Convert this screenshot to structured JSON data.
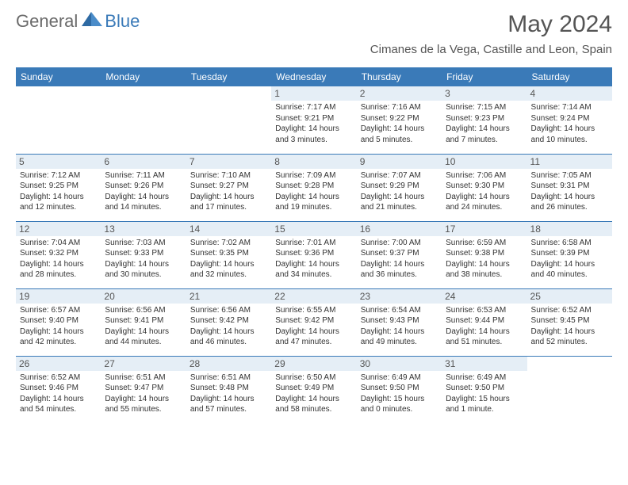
{
  "brand": {
    "part1": "General",
    "part2": "Blue"
  },
  "title": "May 2024",
  "location": "Cimanes de la Vega, Castille and Leon, Spain",
  "colors": {
    "header_bg": "#3a7ab8",
    "header_text": "#ffffff",
    "daynum_bg": "#e5eef6",
    "border": "#3a7ab8",
    "title_color": "#555555",
    "body_text": "#333333"
  },
  "headers": [
    "Sunday",
    "Monday",
    "Tuesday",
    "Wednesday",
    "Thursday",
    "Friday",
    "Saturday"
  ],
  "weeks": [
    [
      null,
      null,
      null,
      {
        "n": "1",
        "sr": "7:17 AM",
        "ss": "9:21 PM",
        "dl": "14 hours and 3 minutes."
      },
      {
        "n": "2",
        "sr": "7:16 AM",
        "ss": "9:22 PM",
        "dl": "14 hours and 5 minutes."
      },
      {
        "n": "3",
        "sr": "7:15 AM",
        "ss": "9:23 PM",
        "dl": "14 hours and 7 minutes."
      },
      {
        "n": "4",
        "sr": "7:14 AM",
        "ss": "9:24 PM",
        "dl": "14 hours and 10 minutes."
      }
    ],
    [
      {
        "n": "5",
        "sr": "7:12 AM",
        "ss": "9:25 PM",
        "dl": "14 hours and 12 minutes."
      },
      {
        "n": "6",
        "sr": "7:11 AM",
        "ss": "9:26 PM",
        "dl": "14 hours and 14 minutes."
      },
      {
        "n": "7",
        "sr": "7:10 AM",
        "ss": "9:27 PM",
        "dl": "14 hours and 17 minutes."
      },
      {
        "n": "8",
        "sr": "7:09 AM",
        "ss": "9:28 PM",
        "dl": "14 hours and 19 minutes."
      },
      {
        "n": "9",
        "sr": "7:07 AM",
        "ss": "9:29 PM",
        "dl": "14 hours and 21 minutes."
      },
      {
        "n": "10",
        "sr": "7:06 AM",
        "ss": "9:30 PM",
        "dl": "14 hours and 24 minutes."
      },
      {
        "n": "11",
        "sr": "7:05 AM",
        "ss": "9:31 PM",
        "dl": "14 hours and 26 minutes."
      }
    ],
    [
      {
        "n": "12",
        "sr": "7:04 AM",
        "ss": "9:32 PM",
        "dl": "14 hours and 28 minutes."
      },
      {
        "n": "13",
        "sr": "7:03 AM",
        "ss": "9:33 PM",
        "dl": "14 hours and 30 minutes."
      },
      {
        "n": "14",
        "sr": "7:02 AM",
        "ss": "9:35 PM",
        "dl": "14 hours and 32 minutes."
      },
      {
        "n": "15",
        "sr": "7:01 AM",
        "ss": "9:36 PM",
        "dl": "14 hours and 34 minutes."
      },
      {
        "n": "16",
        "sr": "7:00 AM",
        "ss": "9:37 PM",
        "dl": "14 hours and 36 minutes."
      },
      {
        "n": "17",
        "sr": "6:59 AM",
        "ss": "9:38 PM",
        "dl": "14 hours and 38 minutes."
      },
      {
        "n": "18",
        "sr": "6:58 AM",
        "ss": "9:39 PM",
        "dl": "14 hours and 40 minutes."
      }
    ],
    [
      {
        "n": "19",
        "sr": "6:57 AM",
        "ss": "9:40 PM",
        "dl": "14 hours and 42 minutes."
      },
      {
        "n": "20",
        "sr": "6:56 AM",
        "ss": "9:41 PM",
        "dl": "14 hours and 44 minutes."
      },
      {
        "n": "21",
        "sr": "6:56 AM",
        "ss": "9:42 PM",
        "dl": "14 hours and 46 minutes."
      },
      {
        "n": "22",
        "sr": "6:55 AM",
        "ss": "9:42 PM",
        "dl": "14 hours and 47 minutes."
      },
      {
        "n": "23",
        "sr": "6:54 AM",
        "ss": "9:43 PM",
        "dl": "14 hours and 49 minutes."
      },
      {
        "n": "24",
        "sr": "6:53 AM",
        "ss": "9:44 PM",
        "dl": "14 hours and 51 minutes."
      },
      {
        "n": "25",
        "sr": "6:52 AM",
        "ss": "9:45 PM",
        "dl": "14 hours and 52 minutes."
      }
    ],
    [
      {
        "n": "26",
        "sr": "6:52 AM",
        "ss": "9:46 PM",
        "dl": "14 hours and 54 minutes."
      },
      {
        "n": "27",
        "sr": "6:51 AM",
        "ss": "9:47 PM",
        "dl": "14 hours and 55 minutes."
      },
      {
        "n": "28",
        "sr": "6:51 AM",
        "ss": "9:48 PM",
        "dl": "14 hours and 57 minutes."
      },
      {
        "n": "29",
        "sr": "6:50 AM",
        "ss": "9:49 PM",
        "dl": "14 hours and 58 minutes."
      },
      {
        "n": "30",
        "sr": "6:49 AM",
        "ss": "9:50 PM",
        "dl": "15 hours and 0 minutes."
      },
      {
        "n": "31",
        "sr": "6:49 AM",
        "ss": "9:50 PM",
        "dl": "15 hours and 1 minute."
      },
      null
    ]
  ],
  "labels": {
    "sunrise": "Sunrise: ",
    "sunset": "Sunset: ",
    "daylight": "Daylight: "
  }
}
